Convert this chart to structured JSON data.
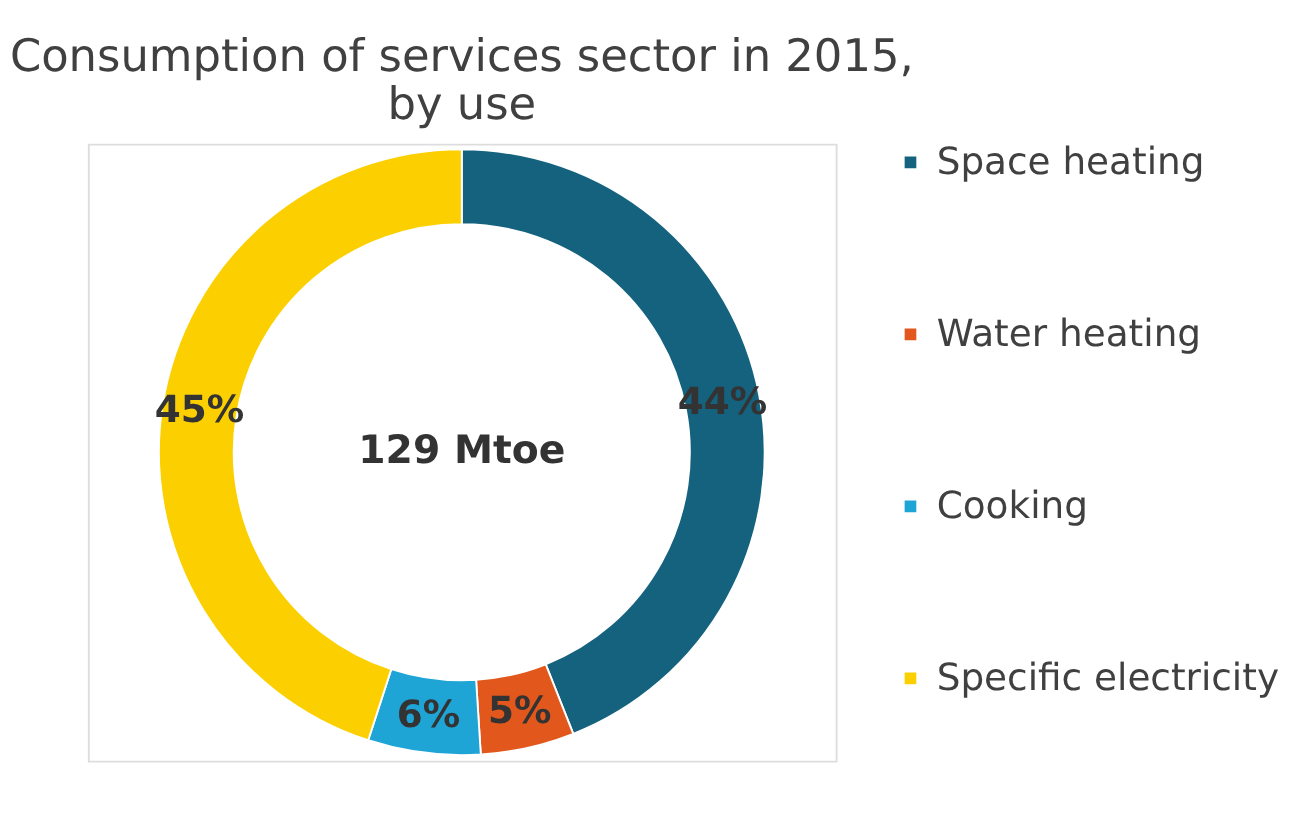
{
  "chart_data": {
    "type": "donut",
    "title": [
      "Consumption of services sector in 2015,",
      "by use"
    ],
    "categories": [
      "Space heating",
      "Water heating",
      "Cooking",
      "Specific electricity"
    ],
    "values": [
      44,
      5,
      6,
      45
    ],
    "colors": [
      "#15627f",
      "#e2571c",
      "#1ea5d6",
      "#fcd000"
    ],
    "value_labels": [
      "44%",
      "5%",
      "6%",
      "45%"
    ],
    "annotations": [
      "129 Mtoe"
    ],
    "legend": "right"
  }
}
